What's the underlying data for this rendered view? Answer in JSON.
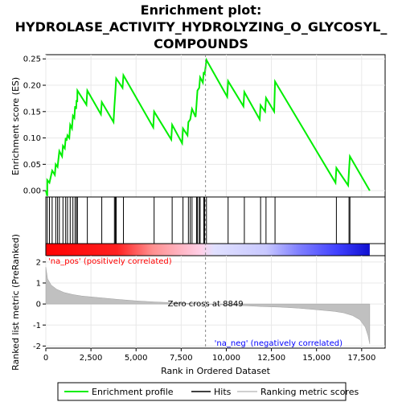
{
  "chart_data": {
    "type": "line",
    "title_lines": [
      "Enrichment plot:",
      "HYDROLASE_ACTIVITY_HYDROLYZING_O_GLYCOSYL_",
      "COMPOUNDS"
    ],
    "ylabel_top": "Enrichment score (ES)",
    "ylabel_bottom": "Ranked list metric (PreRanked)",
    "xlabel": "Rank in Ordered Dataset",
    "x_ticks": [
      0,
      2500,
      5000,
      7500,
      10000,
      12500,
      15000,
      17500
    ],
    "x_tick_labels": [
      "0",
      "2,500",
      "5,000",
      "7,500",
      "10,000",
      "12,500",
      "15,000",
      "17,500"
    ],
    "xlim": [
      0,
      18800
    ],
    "es_ylim": [
      -0.012,
      0.258
    ],
    "es_ticks": [
      0.0,
      0.05,
      0.1,
      0.15,
      0.2,
      0.25
    ],
    "es_tick_labels": [
      "0.00",
      "0.05",
      "0.10",
      "0.15",
      "0.20",
      "0.25"
    ],
    "metric_ylim": [
      -2.1,
      2.3
    ],
    "metric_ticks": [
      -2,
      -1,
      0,
      1,
      2
    ],
    "metric_tick_labels": [
      "-2",
      "-1",
      "0",
      "1",
      "2"
    ],
    "zero_cross": 8849,
    "zero_cross_label": "Zero cross at 8849",
    "pos_label": "'na_pos' (positively correlated)",
    "neg_label": "'na_neg' (negatively correlated)",
    "n_genes": 17950,
    "hits": [
      80,
      200,
      350,
      550,
      650,
      750,
      950,
      1100,
      1200,
      1350,
      1500,
      1620,
      1700,
      1750,
      2300,
      3100,
      3800,
      3850,
      3900,
      4300,
      6000,
      7000,
      7600,
      7900,
      8000,
      8100,
      8350,
      8400,
      8500,
      8550,
      8750,
      8800,
      8900,
      10100,
      11000,
      11900,
      12200,
      12700,
      16100,
      16800,
      16850
    ],
    "es_points": [
      [
        0,
        0.0
      ],
      [
        80,
        -0.01
      ],
      [
        80,
        0.02
      ],
      [
        200,
        0.015
      ],
      [
        350,
        0.038
      ],
      [
        500,
        0.03
      ],
      [
        550,
        0.05
      ],
      [
        650,
        0.045
      ],
      [
        750,
        0.075
      ],
      [
        900,
        0.065
      ],
      [
        950,
        0.085
      ],
      [
        1050,
        0.08
      ],
      [
        1100,
        0.1
      ],
      [
        1150,
        0.095
      ],
      [
        1200,
        0.105
      ],
      [
        1300,
        0.1
      ],
      [
        1350,
        0.125
      ],
      [
        1450,
        0.118
      ],
      [
        1500,
        0.142
      ],
      [
        1580,
        0.138
      ],
      [
        1620,
        0.16
      ],
      [
        1680,
        0.155
      ],
      [
        1700,
        0.172
      ],
      [
        1740,
        0.168
      ],
      [
        1750,
        0.19
      ],
      [
        2250,
        0.163
      ],
      [
        2300,
        0.19
      ],
      [
        3050,
        0.145
      ],
      [
        3100,
        0.168
      ],
      [
        3750,
        0.13
      ],
      [
        3800,
        0.16
      ],
      [
        3850,
        0.185
      ],
      [
        3900,
        0.213
      ],
      [
        4250,
        0.195
      ],
      [
        4300,
        0.219
      ],
      [
        5950,
        0.12
      ],
      [
        6000,
        0.15
      ],
      [
        6950,
        0.097
      ],
      [
        7000,
        0.125
      ],
      [
        7550,
        0.09
      ],
      [
        7600,
        0.118
      ],
      [
        7850,
        0.105
      ],
      [
        7900,
        0.13
      ],
      [
        8000,
        0.135
      ],
      [
        8100,
        0.155
      ],
      [
        8300,
        0.14
      ],
      [
        8350,
        0.163
      ],
      [
        8400,
        0.19
      ],
      [
        8500,
        0.195
      ],
      [
        8550,
        0.215
      ],
      [
        8700,
        0.205
      ],
      [
        8750,
        0.225
      ],
      [
        8800,
        0.22
      ],
      [
        8900,
        0.248
      ],
      [
        10050,
        0.178
      ],
      [
        10100,
        0.208
      ],
      [
        10950,
        0.16
      ],
      [
        11000,
        0.187
      ],
      [
        11850,
        0.135
      ],
      [
        11900,
        0.162
      ],
      [
        12150,
        0.15
      ],
      [
        12200,
        0.176
      ],
      [
        12650,
        0.15
      ],
      [
        12700,
        0.207
      ],
      [
        16050,
        0.015
      ],
      [
        16100,
        0.043
      ],
      [
        16750,
        0.01
      ],
      [
        16800,
        0.038
      ],
      [
        16850,
        0.065
      ],
      [
        17950,
        0.0
      ]
    ],
    "metric_profile": [
      [
        0,
        1.75
      ],
      [
        100,
        1.2
      ],
      [
        300,
        0.9
      ],
      [
        600,
        0.7
      ],
      [
        1000,
        0.55
      ],
      [
        1500,
        0.45
      ],
      [
        2000,
        0.38
      ],
      [
        3000,
        0.3
      ],
      [
        4000,
        0.22
      ],
      [
        5000,
        0.15
      ],
      [
        6000,
        0.1
      ],
      [
        7000,
        0.06
      ],
      [
        8000,
        0.03
      ],
      [
        8849,
        0.0
      ],
      [
        10000,
        -0.05
      ],
      [
        11000,
        -0.08
      ],
      [
        12000,
        -0.12
      ],
      [
        13000,
        -0.15
      ],
      [
        14000,
        -0.2
      ],
      [
        15000,
        -0.27
      ],
      [
        16000,
        -0.35
      ],
      [
        16500,
        -0.42
      ],
      [
        17000,
        -0.55
      ],
      [
        17400,
        -0.75
      ],
      [
        17700,
        -1.1
      ],
      [
        17850,
        -1.5
      ],
      [
        17950,
        -1.9
      ]
    ]
  },
  "legend": {
    "items": [
      {
        "label": "Enrichment profile",
        "color": "#00ee00"
      },
      {
        "label": "Hits",
        "color": "#000000"
      },
      {
        "label": "Ranking metric scores",
        "color": "#c0c0c0"
      }
    ]
  },
  "colors": {
    "es_line": "#00ee00",
    "metric_fill": "#c0c0c0",
    "pos": "#ff0000",
    "neg": "#0000ff"
  }
}
